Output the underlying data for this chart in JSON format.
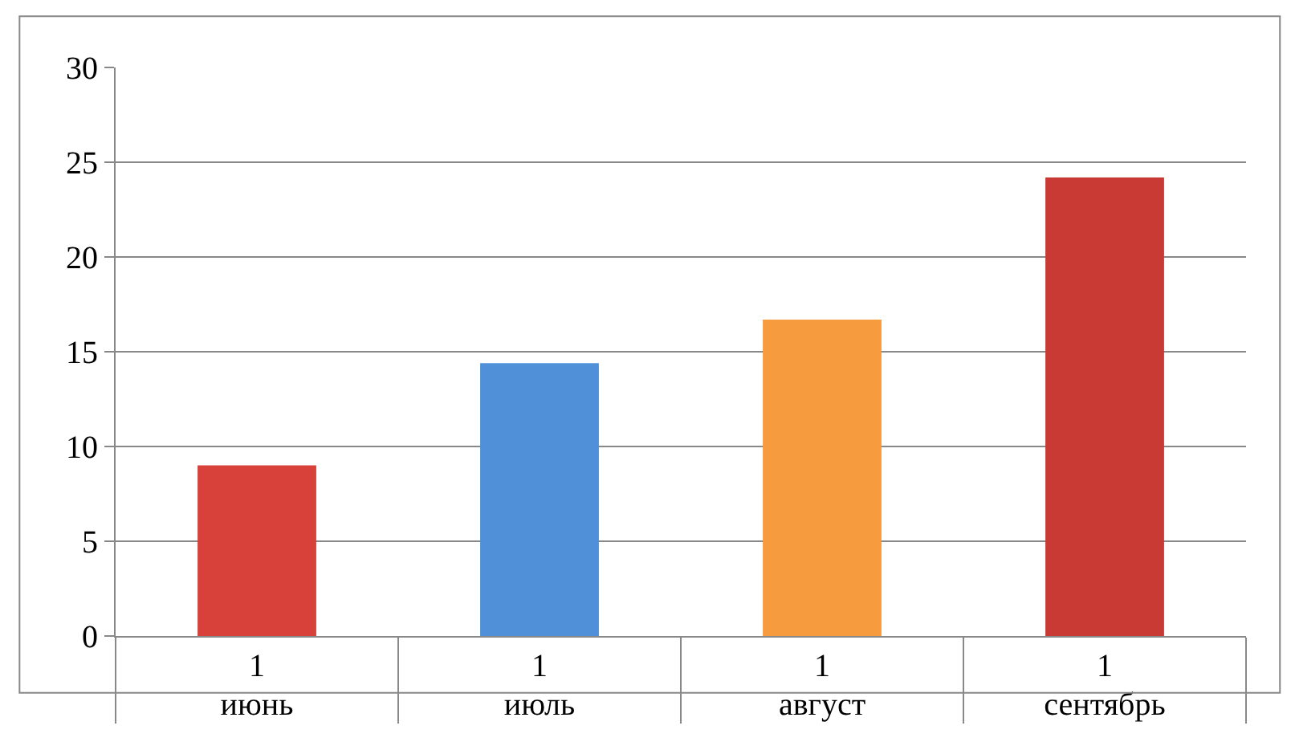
{
  "chart_data": {
    "type": "bar",
    "categories": [
      "1\nиюнь",
      "1\nиюль",
      "1\nавгуст",
      "1\nсентябрь"
    ],
    "values": [
      9.0,
      14.4,
      16.7,
      24.2
    ],
    "colors": [
      "#d8403a",
      "#4f90d9",
      "#f79b3f",
      "#c93a34"
    ],
    "ylim": [
      0,
      30
    ],
    "yticks": [
      0,
      5,
      10,
      15,
      20,
      25,
      30
    ],
    "grid": "y",
    "legend": false
  }
}
